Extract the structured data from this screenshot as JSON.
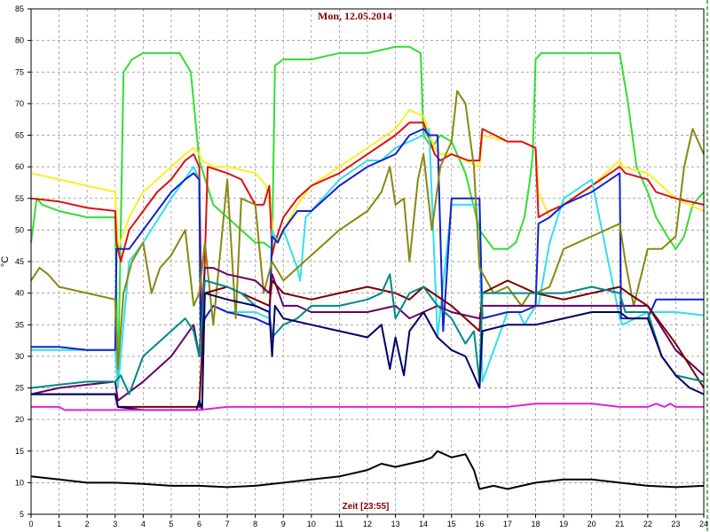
{
  "chart_data": {
    "type": "line",
    "title": "Mon, 12.05.2014",
    "xlabel": "Zeit [23:55]",
    "ylabel": "°C",
    "xlim": [
      0,
      24
    ],
    "ylim": [
      5,
      85
    ],
    "x_ticks": [
      "0",
      "1",
      "2",
      "3",
      "4",
      "5",
      "6",
      "7",
      "8",
      "9",
      "10",
      "11",
      "12",
      "13",
      "14",
      "15",
      "16",
      "17",
      "18",
      "19",
      "20",
      "21",
      "22",
      "23",
      "24"
    ],
    "y_ticks": [
      "5",
      "10",
      "15",
      "20",
      "25",
      "30",
      "35",
      "40",
      "45",
      "50",
      "55",
      "60",
      "65",
      "70",
      "75",
      "80",
      "85"
    ],
    "grid": true,
    "series": [
      {
        "color": "#33dd33",
        "x": [
          0,
          0.2,
          0.4,
          1,
          2,
          3,
          3.1,
          3.3,
          3.6,
          4,
          4.5,
          5,
          5.3,
          5.7,
          6,
          6.5,
          7,
          7.5,
          8,
          8.3,
          8.6,
          8.7,
          9,
          10,
          11,
          12,
          13,
          13.5,
          13.9,
          14,
          14.3,
          14.6,
          15,
          15.5,
          16,
          16.5,
          17,
          17.3,
          17.6,
          17.8,
          17.9,
          18,
          18.2,
          18.5,
          19,
          20,
          21,
          21.3,
          21.6,
          22,
          22.3,
          22.7,
          23,
          23.3,
          23.6,
          24
        ],
        "y": [
          48,
          55,
          54,
          53,
          52,
          52,
          25,
          75,
          77,
          78,
          78,
          78,
          78,
          75,
          61,
          54,
          52,
          50,
          48,
          48,
          47,
          76,
          77,
          77,
          78,
          78,
          79,
          79,
          78,
          65,
          63,
          65,
          64,
          59,
          50,
          47,
          47,
          48,
          52,
          58,
          62,
          77,
          78,
          78,
          78,
          78,
          78,
          70,
          60,
          56,
          52,
          49,
          47,
          49,
          54,
          56
        ]
      },
      {
        "color": "#ffee22",
        "x": [
          0,
          1,
          2,
          3,
          3.1,
          3.5,
          4,
          4.5,
          5,
          5.5,
          5.8,
          6,
          6.1,
          6.5,
          7,
          8,
          8.4,
          8.7,
          9,
          9.5,
          10,
          11,
          12,
          13,
          13.5,
          14,
          14.4,
          14.6,
          15,
          16,
          16.1,
          17,
          17.5,
          18,
          18.1,
          18.5,
          19,
          20,
          21,
          21.1,
          22,
          23,
          24
        ],
        "y": [
          59,
          58,
          57,
          56,
          47,
          52,
          56,
          58,
          60,
          62,
          63,
          62,
          61,
          60,
          60,
          59,
          57,
          48,
          50,
          54,
          57,
          60,
          63,
          66,
          69,
          68,
          63,
          62,
          62,
          60,
          65,
          64,
          64,
          63,
          56,
          52,
          54,
          57,
          61,
          60,
          59,
          55,
          53
        ]
      },
      {
        "color": "#dd1111",
        "x": [
          0,
          1,
          2,
          3,
          3.05,
          3.2,
          3.5,
          4,
          4.5,
          5,
          5.5,
          5.8,
          6,
          6.1,
          6.3,
          7,
          7.5,
          8,
          8.3,
          8.5,
          8.6,
          8.7,
          9,
          9.5,
          10,
          11,
          12,
          13,
          13.5,
          14,
          14.4,
          14.6,
          15,
          15.6,
          16,
          16.1,
          17,
          17.5,
          18,
          18.1,
          18.5,
          19,
          20,
          21,
          21.2,
          22,
          22.3,
          23,
          24
        ],
        "y": [
          55,
          54.5,
          53.5,
          53,
          48,
          45,
          50,
          53,
          56,
          58,
          61,
          62,
          60,
          31,
          60,
          59,
          58,
          54,
          54,
          57,
          46,
          48,
          52,
          55,
          57,
          59,
          62,
          65,
          67,
          67,
          62,
          61,
          62,
          61,
          61,
          66,
          64,
          64,
          63,
          52,
          53,
          54,
          57,
          60,
          59,
          58,
          56,
          55,
          54
        ]
      },
      {
        "color": "#33ddee",
        "x": [
          0,
          3,
          3.1,
          3.5,
          4,
          5,
          5.8,
          6,
          6.05,
          6.2,
          6.5,
          7,
          8,
          8.5,
          8.6,
          8.8,
          9,
          9.5,
          9.6,
          9.8,
          10,
          11,
          12,
          12.5,
          13,
          13.5,
          14,
          14.2,
          14.5,
          15,
          15.5,
          16,
          16.1,
          17,
          17.4,
          17.6,
          18,
          18.1,
          18.5,
          19,
          20,
          21,
          21.1,
          22,
          22.5,
          23,
          24
        ],
        "y": [
          31,
          31,
          25,
          45,
          48,
          55,
          60,
          58,
          30,
          36,
          38,
          37,
          37,
          36,
          50,
          48,
          50,
          44,
          42,
          52,
          53,
          58,
          61,
          61,
          63,
          64,
          65,
          66,
          33,
          54,
          54,
          54,
          26,
          37,
          37,
          35,
          38,
          38,
          48,
          55,
          58,
          36,
          35,
          37,
          37,
          37,
          36.5
        ]
      },
      {
        "color": "#1122cc",
        "x": [
          0,
          1,
          2,
          3,
          3.05,
          3.5,
          4,
          4.5,
          5,
          5.5,
          5.8,
          6,
          6.05,
          6.2,
          6.5,
          7,
          8,
          8.5,
          8.6,
          8.8,
          9,
          9.5,
          10,
          11,
          12,
          13,
          13.5,
          14,
          14.2,
          14.5,
          14.7,
          15,
          15.5,
          15.8,
          16,
          16.1,
          17,
          17.5,
          18,
          18.1,
          18.5,
          19,
          20,
          21,
          21.05,
          22,
          22.3,
          23,
          24
        ],
        "y": [
          31.5,
          31.5,
          31,
          31,
          47,
          47,
          50,
          53,
          56,
          58,
          59,
          58,
          34,
          36,
          38,
          37,
          36,
          35,
          49,
          48,
          50,
          53,
          53,
          57,
          60,
          62,
          65,
          66,
          65,
          65,
          34,
          55,
          55,
          55,
          55,
          36,
          37,
          37,
          38,
          51,
          52,
          54,
          56,
          59,
          36,
          36,
          39,
          39,
          39
        ]
      },
      {
        "color": "#888811",
        "x": [
          0,
          0.3,
          0.6,
          1,
          2,
          3,
          3.1,
          3.3,
          3.6,
          4,
          4.3,
          4.6,
          5,
          5.5,
          5.8,
          6,
          6.2,
          6.5,
          7,
          7.3,
          7.5,
          8,
          8.3,
          8.6,
          9,
          9.5,
          10,
          11,
          12,
          12.5,
          12.8,
          13,
          13.3,
          13.5,
          13.8,
          14,
          14.3,
          14.6,
          15,
          15.2,
          15.5,
          15.8,
          16,
          16.5,
          17,
          17.5,
          17.8,
          18,
          18.5,
          19,
          20,
          21,
          21.2,
          21.5,
          22,
          22.5,
          23,
          23.3,
          23.6,
          24
        ],
        "y": [
          42,
          44,
          43,
          41,
          40,
          39,
          28,
          40,
          45,
          48,
          40,
          44,
          46,
          50,
          38,
          40,
          48,
          35,
          58,
          36,
          55,
          54,
          40,
          45,
          42,
          44,
          46,
          50,
          53,
          56,
          60,
          54,
          55,
          45,
          58,
          62,
          50,
          60,
          64,
          72,
          70,
          60,
          44,
          40,
          41,
          38,
          40,
          40,
          41,
          47,
          49,
          51,
          45,
          38,
          47,
          47,
          49,
          60,
          66,
          62
        ]
      },
      {
        "color": "#660066",
        "x": [
          0,
          1,
          2,
          3,
          3.1,
          4,
          5,
          5.8,
          6,
          6.2,
          6.5,
          7,
          8,
          8.5,
          8.6,
          9,
          9.5,
          10,
          11,
          12,
          13,
          13.5,
          14,
          14.5,
          15,
          16,
          16.1,
          17,
          18,
          19,
          20,
          21,
          21.2,
          22,
          23,
          24
        ],
        "y": [
          24,
          25,
          25.5,
          26,
          23,
          26,
          30,
          35,
          30,
          44,
          44,
          43,
          42,
          40,
          43,
          38,
          38,
          37,
          37,
          37,
          38,
          36,
          37,
          38,
          37,
          36,
          38,
          38,
          38,
          38,
          38,
          38,
          38,
          38,
          31,
          27
        ]
      },
      {
        "color": "#770000",
        "x": [
          0,
          1,
          2,
          3,
          3.1,
          4,
          5,
          5.8,
          6,
          6.2,
          7,
          8,
          8.5,
          8.6,
          9,
          10,
          11,
          12,
          13,
          13.5,
          14,
          15,
          16,
          16.1,
          17,
          17.5,
          18,
          19,
          20,
          21,
          21.3,
          22,
          23,
          24
        ],
        "y": [
          24,
          24,
          24,
          24,
          22,
          22,
          22,
          22,
          22,
          40,
          41,
          39,
          38,
          42,
          40,
          39,
          40,
          41,
          40,
          39,
          41,
          38,
          34,
          40,
          42,
          41,
          40,
          39,
          40,
          41,
          40,
          38,
          32,
          25
        ]
      },
      {
        "color": "#008888",
        "x": [
          0,
          1,
          2,
          3,
          3.2,
          3.5,
          4,
          4.5,
          5,
          5.5,
          5.8,
          6,
          6.2,
          7,
          7.5,
          8,
          8.5,
          8.6,
          9,
          9.5,
          10,
          11,
          12,
          12.5,
          12.8,
          13,
          13.5,
          14,
          14.5,
          15,
          15.5,
          15.8,
          16,
          16.1,
          17,
          18,
          19,
          20,
          21,
          21.2,
          22,
          22.5,
          23,
          24
        ],
        "y": [
          25,
          25.5,
          26,
          26,
          27,
          24,
          30,
          32,
          34,
          36,
          34,
          30,
          42,
          41,
          40,
          38,
          37,
          33,
          35,
          36,
          38,
          38,
          39,
          40,
          43,
          36,
          40,
          41,
          38,
          36,
          32,
          34,
          26,
          40,
          40,
          40,
          40,
          41,
          40,
          37,
          37,
          30,
          27,
          26
        ]
      },
      {
        "color": "#000066",
        "x": [
          0,
          1,
          2,
          3,
          3.1,
          4,
          5,
          5.9,
          6,
          6.1,
          6.2,
          7,
          8,
          8.5,
          8.6,
          8.7,
          9,
          10,
          11,
          12,
          12.5,
          12.8,
          13,
          13.3,
          13.5,
          14,
          14.5,
          15,
          15.5,
          15.9,
          16,
          16.1,
          17,
          18,
          19,
          20,
          21,
          21.3,
          22,
          22.5,
          23,
          23.5,
          24
        ],
        "y": [
          24,
          24,
          24,
          24,
          22,
          21.5,
          21.5,
          21.5,
          23,
          21.5,
          40,
          39,
          38,
          37,
          30,
          38,
          36,
          35,
          34,
          33,
          35,
          28,
          33,
          27,
          34,
          37,
          33,
          31,
          30,
          26,
          25,
          34,
          35,
          35,
          36,
          37,
          37,
          36,
          36,
          30,
          27,
          25,
          24
        ]
      },
      {
        "color": "#dd22dd",
        "x": [
          0,
          1,
          1.2,
          2,
          3,
          4,
          5,
          6,
          7,
          8,
          9,
          10,
          11,
          12,
          13,
          14,
          15,
          16,
          17,
          18,
          19,
          20,
          21,
          22,
          22.3,
          22.6,
          22.8,
          23,
          24
        ],
        "y": [
          22,
          22,
          21.5,
          21.5,
          21.5,
          21.5,
          21.5,
          21.5,
          22,
          22,
          22,
          22,
          22,
          22,
          22,
          22,
          22,
          22,
          22,
          22.5,
          22.5,
          22.5,
          22,
          22,
          22.5,
          22,
          22.5,
          22,
          22
        ]
      },
      {
        "color": "#000000",
        "x": [
          0,
          1,
          2,
          3,
          4,
          5,
          6,
          7,
          8,
          9,
          10,
          11,
          12,
          12.5,
          13,
          13.5,
          14,
          14.3,
          14.5,
          15,
          15.5,
          15.8,
          16,
          16.5,
          17,
          17.5,
          18,
          19,
          20,
          21,
          22,
          23,
          24
        ],
        "y": [
          11,
          10.5,
          10,
          10,
          9.8,
          9.5,
          9.5,
          9.3,
          9.5,
          10,
          10.5,
          11,
          12,
          13,
          12.5,
          13,
          13.5,
          14,
          15,
          14,
          14.5,
          12,
          9,
          9.5,
          9,
          9.5,
          10,
          10.5,
          10.5,
          10,
          9.5,
          9.3,
          9.5
        ]
      }
    ]
  }
}
